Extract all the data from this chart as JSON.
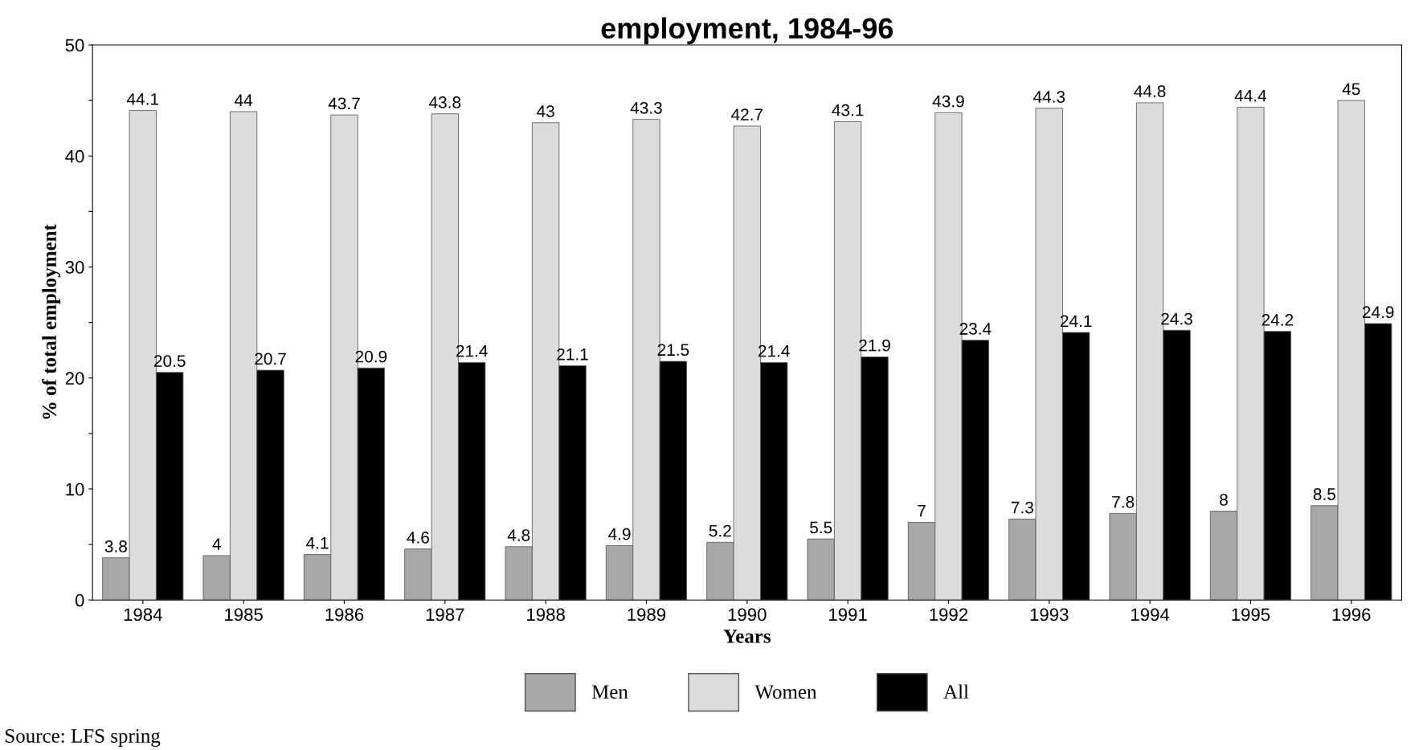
{
  "chart_data": {
    "type": "bar",
    "title": "employment, 1984-96",
    "xlabel": "Years",
    "ylabel": "% of total employment",
    "categories": [
      "1984",
      "1985",
      "1986",
      "1987",
      "1988",
      "1989",
      "1990",
      "1991",
      "1992",
      "1993",
      "1994",
      "1995",
      "1996"
    ],
    "series": [
      {
        "name": "Men",
        "color": "#a8a8a8",
        "values": [
          3.8,
          4,
          4.1,
          4.6,
          4.8,
          4.9,
          5.2,
          5.5,
          7,
          7.3,
          7.8,
          8,
          8.5
        ]
      },
      {
        "name": "Women",
        "color": "#dcdcdc",
        "values": [
          44.1,
          44,
          43.7,
          43.8,
          43,
          43.3,
          42.7,
          43.1,
          43.9,
          44.3,
          44.8,
          44.4,
          45
        ]
      },
      {
        "name": "All",
        "color": "#000000",
        "values": [
          20.5,
          20.7,
          20.9,
          21.4,
          21.1,
          21.5,
          21.4,
          21.9,
          23.4,
          24.1,
          24.3,
          24.2,
          24.9
        ]
      }
    ],
    "ylim": [
      0,
      50
    ],
    "yticks": [
      0,
      {
        "value": 5,
        "label": null
      },
      10,
      {
        "value": 15,
        "label": null
      },
      20,
      {
        "value": 25,
        "label": null
      },
      30,
      {
        "value": 35,
        "label": null
      },
      40,
      {
        "value": 45,
        "label": null
      },
      50
    ],
    "data_labels": true,
    "legend": "bottom",
    "grid": false,
    "annotations": [
      "Source: LFS spring"
    ]
  }
}
